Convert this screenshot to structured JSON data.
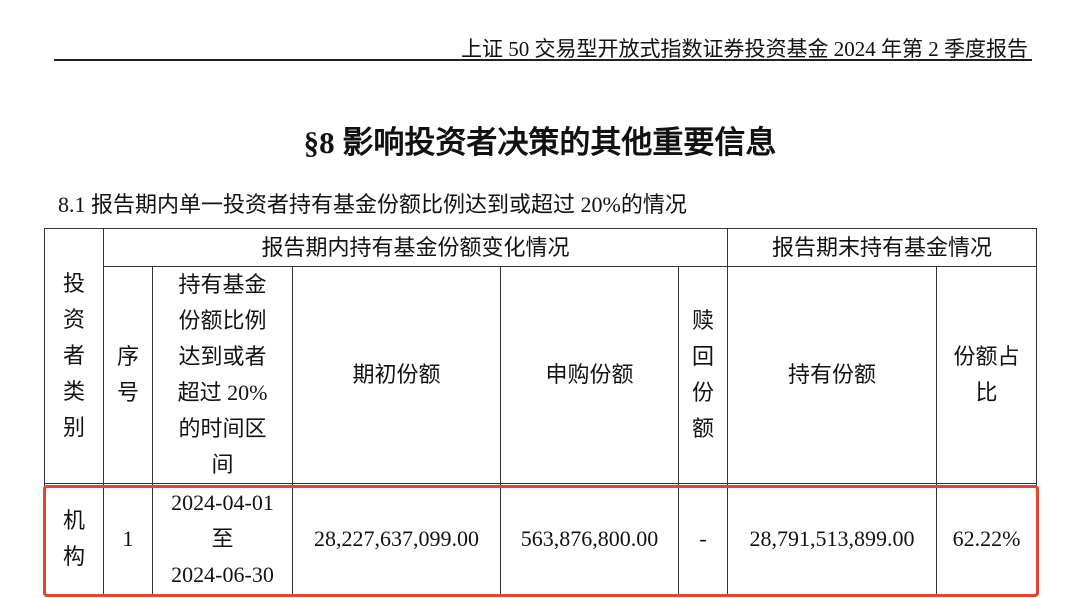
{
  "header": {
    "report_title": "上证 50 交易型开放式指数证券投资基金 2024 年第 2 季度报告"
  },
  "section": {
    "title": "§8  影响投资者决策的其他重要信息",
    "subsection": "8.1  报告期内单一投资者持有基金份额比例达到或超过 20%的情况"
  },
  "table": {
    "group_headers": {
      "change": "报告期内持有基金份额变化情况",
      "end": "报告期末持有基金情况"
    },
    "columns": {
      "investor_type": "投资者类别",
      "seq": "序号",
      "period": "持有基金份额比例达到或者超过 20%的时间区间",
      "initial": "期初份额",
      "purchase": "申购份额",
      "redeem": "赎回份额",
      "holding": "持有份额",
      "ratio": "份额占比"
    },
    "rows": [
      {
        "investor_type": "机构",
        "seq": "1",
        "period_start": "2024-04-01",
        "period_to": "至",
        "period_end": "2024-06-30",
        "initial": "28,227,637,099.00",
        "purchase": "563,876,800.00",
        "redeem": "-",
        "holding": "28,791,513,899.00",
        "ratio": "62.22%"
      }
    ]
  },
  "highlight_color": "#e8432e"
}
